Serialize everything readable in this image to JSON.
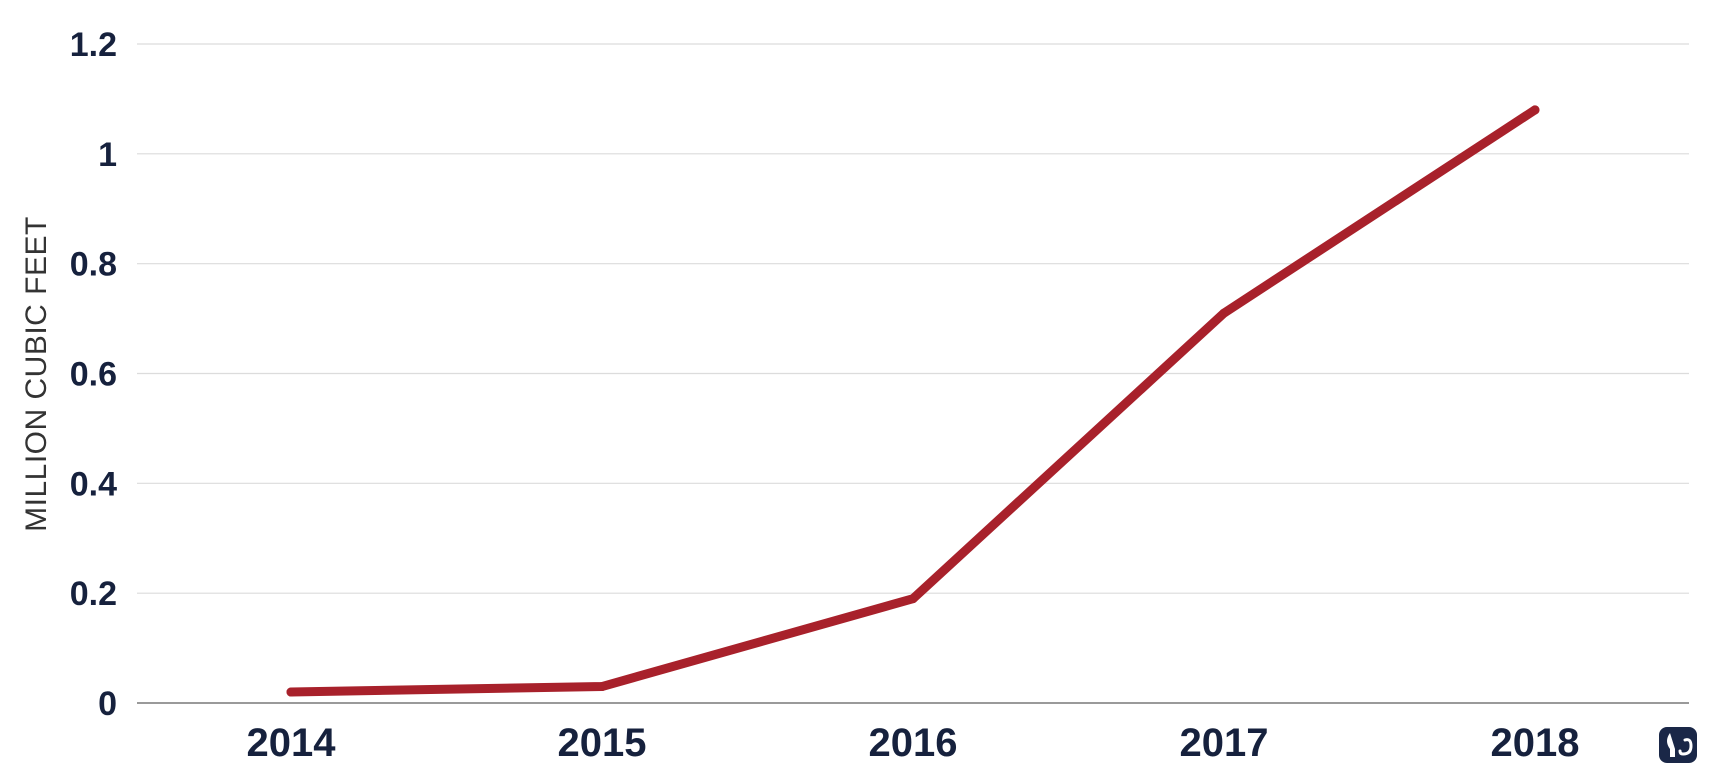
{
  "chart_data": {
    "type": "line",
    "title": "",
    "xlabel": "",
    "ylabel": "MILLION CUBIC FEET",
    "categories": [
      "2014",
      "2015",
      "2016",
      "2017",
      "2018"
    ],
    "series": [
      {
        "values": [
          0.02,
          0.03,
          0.19,
          0.71,
          1.08
        ]
      }
    ],
    "ylim": [
      0,
      1.2
    ],
    "yticks": [
      "0",
      "0.2",
      "0.4",
      "0.6",
      "0.8",
      "1",
      "1.2"
    ],
    "ytick_values": [
      0,
      0.2,
      0.4,
      0.6,
      0.8,
      1.0,
      1.2
    ],
    "grid": true,
    "legend": "none",
    "colors": {
      "line": "#a8212b",
      "grid": "#dcdcdc",
      "axis": "#9a9a9a",
      "text": "#16213d",
      "logo": "#1a2747"
    },
    "logo_icon": "elephant-icon"
  }
}
